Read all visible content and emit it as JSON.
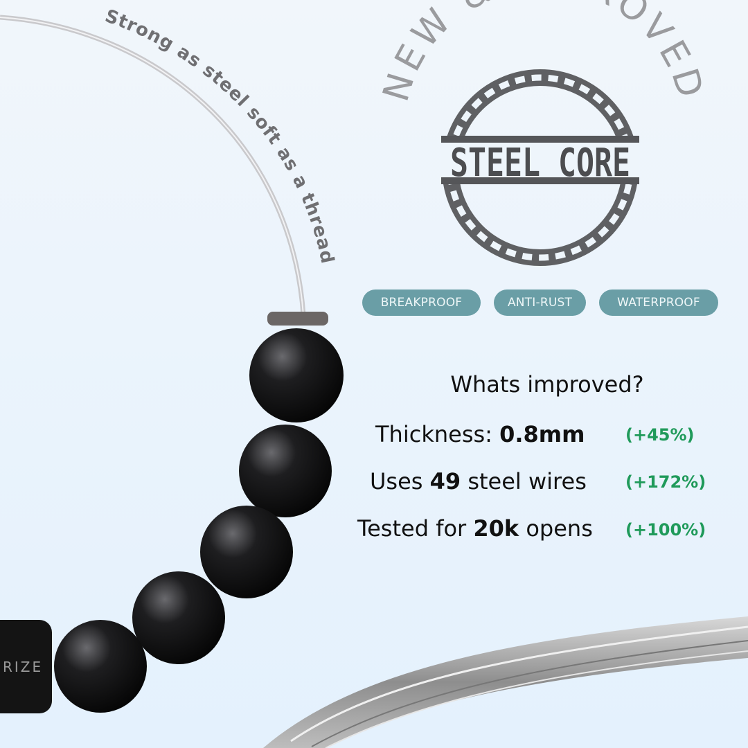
{
  "tagline": "Strong as steel soft as a thread",
  "logo": {
    "arc_text": "NEW & IMPROVED",
    "emblem_text": "STEEL CORE"
  },
  "badges": [
    "BREAKPROOF",
    "ANTI-RUST",
    "WATERPROOF"
  ],
  "improvements": {
    "heading": "Whats improved?",
    "rows": [
      {
        "pre": "Thickness: ",
        "bold": "0.8mm",
        "post": "",
        "change": "(+45%)"
      },
      {
        "pre": "Uses ",
        "bold": "49",
        "post": " steel wires",
        "change": "(+172%)"
      },
      {
        "pre": "Tested for ",
        "bold": "20k",
        "post": " opens",
        "change": "(+100%)"
      }
    ]
  },
  "clasp_text": "RIZE",
  "colors": {
    "badge": "#6a9ea6",
    "accent_green": "#1f9a5a",
    "logo_gray": "#5f6063",
    "arc_text": "#9a9b9e"
  }
}
